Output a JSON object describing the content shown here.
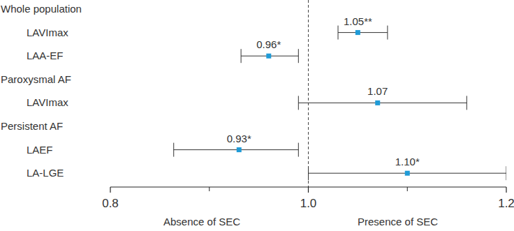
{
  "chart_data": {
    "type": "forest",
    "color": "#1f9bd7",
    "xlim": [
      0.8,
      1.2
    ],
    "xticks": [
      0.8,
      {
        "value": 1,
        "label": "1.0"
      },
      1.2
    ],
    "xminor_ticks": [
      0.9,
      1.1
    ],
    "reference_line": 1,
    "left_label": "Absence of SEC",
    "right_label": "Presence of SEC",
    "data_labels": true,
    "groups": [
      {
        "name": "Whole population",
        "categories": [
          "LAVImax",
          "LAA-EF"
        ],
        "values": [
          1.05,
          0.96
        ],
        "value_labels": [
          "1.05**",
          "0.96*"
        ],
        "lower": [
          1.03,
          0.932
        ],
        "upper": [
          1.08,
          0.99
        ]
      },
      {
        "name": "Paroxysmal AF",
        "categories": [
          "LAVImax"
        ],
        "values": [
          1.07
        ],
        "value_labels": [
          "1.07"
        ],
        "lower": [
          0.99
        ],
        "upper": [
          1.16
        ]
      },
      {
        "name": "Persistent AF",
        "categories": [
          "LAEF",
          "LA-LGE"
        ],
        "values": [
          0.93,
          1.1
        ],
        "value_labels": [
          "0.93*",
          "1.10*"
        ],
        "lower": [
          0.864,
          1.0
        ],
        "upper": [
          0.99,
          1.2
        ]
      }
    ]
  }
}
